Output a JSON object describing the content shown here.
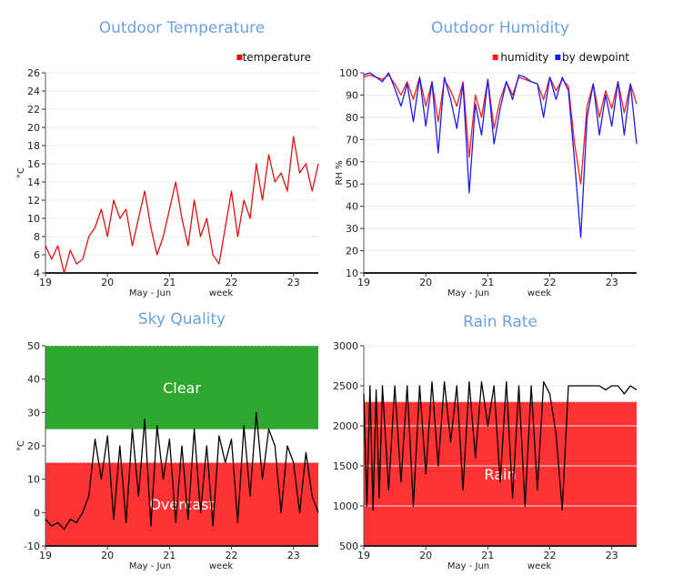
{
  "colors": {
    "title": "#6aa0e6",
    "temperature": "#e01010",
    "humidity": "#ff1a1a",
    "dewpoint": "#1a1aff",
    "clear_band": "#2ea82e",
    "overcast_band": "#ff3333",
    "rain_band": "#ff3333",
    "line_dark": "#000000",
    "grid": "#e8e8e8"
  },
  "chart_data": [
    {
      "id": "outdoor-temperature",
      "type": "line",
      "title": "Outdoor Temperature",
      "xlabel": "May - Jun",
      "xlabel2": "week",
      "ylabel": "°C",
      "x_ticks": [
        "19",
        "20",
        "21",
        "22",
        "23"
      ],
      "y_ticks": [
        "4",
        "6",
        "8",
        "10",
        "12",
        "14",
        "16",
        "18",
        "20",
        "22",
        "24",
        "26"
      ],
      "xlim": [
        19,
        23.4
      ],
      "ylim": [
        4,
        26
      ],
      "legend": "top-right",
      "grid": true,
      "series": [
        {
          "name": "temperature",
          "color": "#e01010",
          "x": [
            19.0,
            19.1,
            19.2,
            19.3,
            19.4,
            19.5,
            19.6,
            19.7,
            19.8,
            19.9,
            20.0,
            20.1,
            20.2,
            20.3,
            20.4,
            20.5,
            20.6,
            20.7,
            20.8,
            20.9,
            21.0,
            21.1,
            21.2,
            21.3,
            21.4,
            21.5,
            21.6,
            21.7,
            21.8,
            21.9,
            22.0,
            22.1,
            22.2,
            22.3,
            22.4,
            22.5,
            22.6,
            22.7,
            22.8,
            22.9,
            23.0,
            23.1,
            23.2,
            23.3,
            23.4
          ],
          "values": [
            7,
            5.5,
            7,
            4,
            6.5,
            5,
            5.5,
            8,
            9,
            11,
            8,
            12,
            10,
            11,
            7,
            10,
            13,
            9,
            6,
            8,
            11,
            14,
            10,
            7,
            12,
            8,
            10,
            6,
            5,
            9,
            13,
            8,
            12,
            10,
            16,
            12,
            17,
            14,
            15,
            13,
            19,
            15,
            16,
            13,
            16
          ]
        }
      ]
    },
    {
      "id": "outdoor-humidity",
      "type": "line",
      "title": "Outdoor Humidity",
      "xlabel": "May - Jun",
      "xlabel2": "week",
      "ylabel": "RH %",
      "x_ticks": [
        "19",
        "20",
        "21",
        "22",
        "23"
      ],
      "y_ticks": [
        "10",
        "20",
        "30",
        "40",
        "50",
        "60",
        "70",
        "80",
        "90",
        "100"
      ],
      "xlim": [
        19,
        23.4
      ],
      "ylim": [
        10,
        100
      ],
      "legend": "top-right",
      "grid": true,
      "series": [
        {
          "name": "humidity",
          "color": "#ff1a1a",
          "x": [
            19.0,
            19.1,
            19.2,
            19.3,
            19.4,
            19.5,
            19.6,
            19.7,
            19.8,
            19.9,
            20.0,
            20.1,
            20.2,
            20.3,
            20.4,
            20.5,
            20.6,
            20.7,
            20.8,
            20.9,
            21.0,
            21.1,
            21.2,
            21.3,
            21.4,
            21.5,
            21.6,
            21.7,
            21.8,
            21.9,
            22.0,
            22.1,
            22.2,
            22.3,
            22.4,
            22.5,
            22.6,
            22.7,
            22.8,
            22.9,
            23.0,
            23.1,
            23.2,
            23.3,
            23.4
          ],
          "values": [
            98,
            99,
            98,
            97,
            99,
            95,
            90,
            96,
            88,
            98,
            85,
            96,
            78,
            97,
            92,
            85,
            96,
            62,
            90,
            80,
            97,
            75,
            88,
            96,
            90,
            98,
            97,
            96,
            95,
            88,
            98,
            92,
            97,
            94,
            68,
            50,
            85,
            95,
            80,
            92,
            84,
            96,
            82,
            95,
            86
          ]
        },
        {
          "name": "by dewpoint",
          "color": "#1a1aff",
          "x": [
            19.0,
            19.1,
            19.2,
            19.3,
            19.4,
            19.5,
            19.6,
            19.7,
            19.8,
            19.9,
            20.0,
            20.1,
            20.2,
            20.3,
            20.4,
            20.5,
            20.6,
            20.7,
            20.8,
            20.9,
            21.0,
            21.1,
            21.2,
            21.3,
            21.4,
            21.5,
            21.6,
            21.7,
            21.8,
            21.9,
            22.0,
            22.1,
            22.2,
            22.3,
            22.4,
            22.5,
            22.6,
            22.7,
            22.8,
            22.9,
            23.0,
            23.1,
            23.2,
            23.3,
            23.4
          ],
          "values": [
            99,
            100,
            98,
            96,
            100,
            93,
            85,
            95,
            78,
            98,
            76,
            96,
            64,
            98,
            88,
            75,
            95,
            46,
            86,
            72,
            97,
            68,
            84,
            96,
            88,
            99,
            98,
            96,
            95,
            80,
            98,
            88,
            98,
            92,
            60,
            26,
            80,
            95,
            72,
            90,
            76,
            96,
            72,
            95,
            68
          ]
        }
      ]
    },
    {
      "id": "sky-quality",
      "type": "line",
      "title": "Sky Quality",
      "xlabel": "May - Jun",
      "xlabel2": "week",
      "ylabel": "°C",
      "x_ticks": [
        "19",
        "20",
        "21",
        "22",
        "23"
      ],
      "y_ticks": [
        "-10",
        "0",
        "10",
        "20",
        "30",
        "40",
        "50"
      ],
      "xlim": [
        19,
        23.4
      ],
      "ylim": [
        -10,
        50
      ],
      "grid": false,
      "bands": [
        {
          "label": "Clear",
          "from": 25,
          "to": 50,
          "color": "#2ea82e"
        },
        {
          "label": "Overcast",
          "from": -10,
          "to": 15,
          "color": "#ff3333"
        }
      ],
      "series": [
        {
          "color": "#000000",
          "x": [
            19.0,
            19.1,
            19.2,
            19.3,
            19.4,
            19.5,
            19.6,
            19.7,
            19.8,
            19.9,
            20.0,
            20.1,
            20.2,
            20.3,
            20.4,
            20.5,
            20.6,
            20.7,
            20.8,
            20.9,
            21.0,
            21.1,
            21.2,
            21.3,
            21.4,
            21.5,
            21.6,
            21.7,
            21.8,
            21.9,
            22.0,
            22.1,
            22.2,
            22.3,
            22.4,
            22.5,
            22.6,
            22.7,
            22.8,
            22.9,
            23.0,
            23.1,
            23.2,
            23.3,
            23.4
          ],
          "values": [
            -2,
            -4,
            -3,
            -5,
            -2,
            -3,
            0,
            5,
            22,
            10,
            23,
            -2,
            20,
            -3,
            25,
            5,
            28,
            -4,
            26,
            10,
            22,
            -3,
            20,
            -2,
            25,
            0,
            20,
            -4,
            23,
            15,
            22,
            -3,
            26,
            5,
            30,
            10,
            25,
            20,
            0,
            20,
            15,
            0,
            18,
            5,
            0
          ]
        }
      ]
    },
    {
      "id": "rain-rate",
      "type": "line",
      "title": "Rain Rate",
      "xlabel": "May - Jun",
      "xlabel2": "week",
      "ylabel": "",
      "x_ticks": [
        "19",
        "20",
        "21",
        "22",
        "23"
      ],
      "y_ticks": [
        "500",
        "1000",
        "1500",
        "2000",
        "2500",
        "3000"
      ],
      "xlim": [
        19,
        23.4
      ],
      "ylim": [
        500,
        3000
      ],
      "grid": true,
      "bands": [
        {
          "label": "Rain",
          "from": 500,
          "to": 2300,
          "color": "#ff3333"
        }
      ],
      "series": [
        {
          "color": "#000000",
          "x": [
            19.0,
            19.05,
            19.1,
            19.15,
            19.2,
            19.25,
            19.3,
            19.4,
            19.5,
            19.6,
            19.7,
            19.8,
            19.9,
            20.0,
            20.1,
            20.2,
            20.3,
            20.4,
            20.5,
            20.6,
            20.7,
            20.8,
            20.9,
            21.0,
            21.1,
            21.2,
            21.3,
            21.4,
            21.5,
            21.6,
            21.7,
            21.8,
            21.9,
            22.0,
            22.1,
            22.2,
            22.3,
            22.4,
            22.5,
            22.6,
            22.7,
            22.8,
            22.9,
            23.0,
            23.1,
            23.2,
            23.3,
            23.4
          ],
          "values": [
            2400,
            1000,
            2500,
            950,
            2450,
            1100,
            2500,
            1200,
            2500,
            1300,
            2500,
            1000,
            2500,
            1400,
            2550,
            1500,
            2550,
            1800,
            2500,
            1200,
            2550,
            1600,
            2550,
            2000,
            2500,
            1300,
            2550,
            1100,
            2500,
            1000,
            2500,
            1200,
            2550,
            2400,
            1900,
            950,
            2500,
            2500,
            2500,
            2500,
            2500,
            2500,
            2450,
            2500,
            2500,
            2400,
            2500,
            2450
          ]
        }
      ]
    }
  ]
}
